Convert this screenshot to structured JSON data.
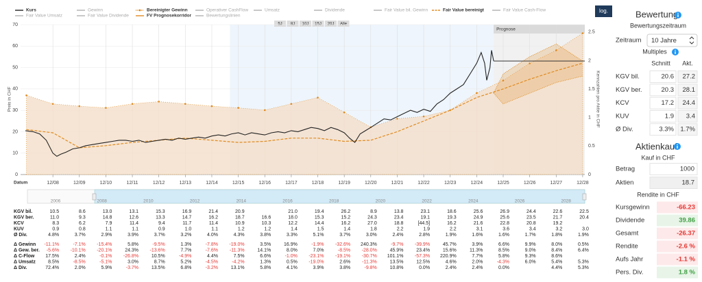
{
  "chart_data": {
    "type": "line",
    "x_label": "Datum",
    "y_label": "Preis in CHF",
    "y2_label": "Kennzahlen pro Aktie in CHF",
    "forecast_label": "Prognose",
    "forecast_start": 2024.64,
    "selected_range": [
      2014.68,
      2024.64
    ],
    "xlim": [
      2006.78,
      2028.08
    ],
    "xticks": [
      {
        "value": 2008,
        "label": "12/08"
      },
      {
        "value": 2009,
        "label": "12/09"
      },
      {
        "value": 2010,
        "label": "12/10"
      },
      {
        "value": 2011,
        "label": "12/11"
      },
      {
        "value": 2012,
        "label": "12/12"
      },
      {
        "value": 2013,
        "label": "12/13"
      },
      {
        "value": 2014,
        "label": "12/14"
      },
      {
        "value": 2015,
        "label": "12/15"
      },
      {
        "value": 2016,
        "label": "12/16"
      },
      {
        "value": 2017,
        "label": "12/17"
      },
      {
        "value": 2018,
        "label": "12/18"
      },
      {
        "value": 2019,
        "label": "12/19"
      },
      {
        "value": 2020,
        "label": "12/20"
      },
      {
        "value": 2021,
        "label": "12/21"
      },
      {
        "value": 2022,
        "label": "12/22"
      },
      {
        "value": 2023,
        "label": "12/23"
      },
      {
        "value": 2024,
        "label": "12/24"
      },
      {
        "value": 2025,
        "label": "12/25"
      },
      {
        "value": 2026,
        "label": "12/26"
      },
      {
        "value": 2027,
        "label": "12/27"
      },
      {
        "value": 2028,
        "label": "12/28"
      }
    ],
    "ylim": [
      0,
      70
    ],
    "yticks": [
      0,
      10,
      20,
      30,
      40,
      50,
      60,
      70
    ],
    "y2lim": [
      0,
      2.63
    ],
    "y2ticks": [
      0,
      0.5,
      1,
      1.5,
      2,
      2.5
    ],
    "grid": true,
    "series": [
      {
        "name": "Kurs",
        "color": "#222222",
        "active": true,
        "style": "line",
        "x": [
          2006.96,
          2007.25,
          2007.5,
          2007.75,
          2008.0,
          2008.15,
          2008.3,
          2008.5,
          2008.75,
          2009.0,
          2009.25,
          2009.5,
          2009.75,
          2010.0,
          2010.25,
          2010.5,
          2010.75,
          2011.0,
          2011.25,
          2011.5,
          2011.75,
          2012.0,
          2012.25,
          2012.5,
          2012.75,
          2013.0,
          2013.25,
          2013.5,
          2013.75,
          2014.0,
          2014.25,
          2014.5,
          2014.75,
          2015.0,
          2015.25,
          2015.5,
          2015.75,
          2016.0,
          2016.25,
          2016.5,
          2016.75,
          2017.0,
          2017.25,
          2017.5,
          2017.75,
          2018.0,
          2018.25,
          2018.5,
          2018.75,
          2019.0,
          2019.2,
          2019.4,
          2019.6,
          2019.8,
          2020.0,
          2020.25,
          2020.5,
          2020.75,
          2021.0,
          2021.25,
          2021.5,
          2021.75,
          2022.0,
          2022.25,
          2022.5,
          2022.75,
          2023.0,
          2023.25,
          2023.5,
          2023.75,
          2024.0,
          2024.17,
          2024.3,
          2024.38,
          2024.5,
          2024.56,
          2024.64
        ],
        "values": [
          20.5,
          20,
          19,
          16,
          10,
          8.5,
          9.5,
          10.5,
          12,
          12.5,
          13.5,
          14,
          14.5,
          15,
          15.5,
          16,
          16,
          15.5,
          16,
          15,
          15.5,
          16,
          16.5,
          16,
          17,
          16.5,
          17,
          17.5,
          17,
          18,
          18.5,
          18,
          19,
          19.5,
          18.5,
          19.5,
          19,
          18.5,
          19.5,
          20,
          19.5,
          20.5,
          20,
          21,
          22,
          21.5,
          20.5,
          22,
          21,
          19.5,
          17,
          15,
          19,
          20.5,
          22,
          24,
          26,
          25.5,
          27,
          28.5,
          30,
          29,
          30.5,
          29.5,
          33,
          35,
          38,
          40,
          42,
          47,
          52,
          57,
          52,
          44,
          50,
          58,
          53
        ]
      },
      {
        "name": "Gewinn",
        "color": "#c8c8c8",
        "active": false
      },
      {
        "name": "Fair Value Umsatz",
        "color": "#c8c8c8",
        "active": false
      },
      {
        "name": "Fair Value Dividende",
        "color": "#c8c8c8",
        "active": false
      },
      {
        "name": "Bereinigter Gewinn",
        "color": "#e08a1e",
        "fill": "#f4dfc9",
        "active": true,
        "style": "area",
        "axis": "y2",
        "x": [
          2007,
          2008,
          2009,
          2010,
          2011,
          2012,
          2013,
          2014,
          2015,
          2016,
          2017,
          2018,
          2019,
          2020,
          2021,
          2022,
          2023,
          2024,
          2025,
          2026,
          2027,
          2028
        ],
        "values": [
          1.39,
          1.24,
          1.2,
          1.17,
          1.24,
          1.28,
          1.24,
          1.2,
          1.17,
          1.13,
          1.24,
          1.35,
          1.09,
          0.83,
          0.98,
          1.02,
          1.13,
          1.43,
          1.65,
          1.95,
          2.18,
          2.48
        ]
      },
      {
        "name": "FV Prognosekorridor",
        "color": "#e08a1e",
        "active": true,
        "style": "corridor",
        "x": [
          2024.64,
          2025,
          2026,
          2027,
          2028
        ],
        "upper": [
          38,
          47,
          55,
          61,
          53
        ],
        "lower": [
          38,
          33,
          38,
          43,
          46
        ]
      },
      {
        "name": "Operativer CashFlow",
        "color": "#c8c8c8",
        "active": false
      },
      {
        "name": "Bewertungslinien",
        "color": "#c8c8c8",
        "active": false
      },
      {
        "name": "Umsatz",
        "color": "#c8c8c8",
        "active": false
      },
      {
        "name": "Dividende",
        "color": "#c8c8c8",
        "active": false
      },
      {
        "name": "Fair Value bil. Gewinn",
        "color": "#c8c8c8",
        "active": false
      },
      {
        "name": "Fair Value bereinigt",
        "color": "#e08a1e",
        "active": true,
        "style": "dashed",
        "x": [
          2007,
          2008,
          2009,
          2010,
          2011,
          2012,
          2013,
          2014,
          2015,
          2016,
          2017,
          2018,
          2019,
          2020,
          2021,
          2022,
          2023,
          2024,
          2025,
          2026,
          2027,
          2028
        ],
        "values": [
          21,
          19.5,
          12.5,
          13.5,
          15,
          16,
          17,
          16,
          15,
          15.5,
          17,
          17,
          15.5,
          16,
          20,
          25,
          30,
          36,
          40,
          44.5,
          48.5,
          52
        ]
      },
      {
        "name": "Fair Value Cash-Flow",
        "color": "#c8c8c8",
        "active": false
      }
    ]
  },
  "controls": {
    "log_button": "log.",
    "range_buttons": [
      "5J",
      "8J",
      "10J",
      "15J",
      "20J",
      "Alle"
    ]
  },
  "navigator_labels": [
    2006,
    2008,
    2010,
    2012,
    2014,
    2016,
    2018,
    2020,
    2022,
    2024,
    2026,
    2028
  ],
  "table": {
    "multiples": {
      "row_labels": [
        "KGV bil.",
        "KGV ber.",
        "KCV",
        "KUV",
        "Ø Div."
      ],
      "rows": [
        [
          "10.5",
          "8.6",
          "13.0",
          "13.1",
          "15.3",
          "16.9",
          "21.4",
          "20.9",
          null,
          "21.0",
          "19.4",
          "26.2",
          "8.9",
          "13.8",
          "23.1",
          "18.6",
          "25.6",
          "26.9",
          "24.4",
          "22.6",
          "22.5"
        ],
        [
          "11.0",
          "9.3",
          "14.8",
          "12.6",
          "13.3",
          "14.7",
          "16.2",
          "18.7",
          "16.6",
          "18.0",
          "15.3",
          "15.2",
          "24.3",
          "23.4",
          "19.1",
          "19.3",
          "24.9",
          "25.6",
          "23.5",
          "21.7",
          "20.4"
        ],
        [
          "8.3",
          "6.2",
          "7.9",
          "11.4",
          "9.4",
          "11.7",
          "11.4",
          "10.9",
          "10.3",
          "12.2",
          "14.4",
          "16.2",
          "27.0",
          "18.8",
          "[44.5]",
          "16.2",
          "21.6",
          "22.8",
          "20.8",
          "19.2",
          null
        ],
        [
          "0.9",
          "0.8",
          "1.1",
          "1.1",
          "0.9",
          "1.0",
          "1.1",
          "1.2",
          "1.2",
          "1.4",
          "1.5",
          "1.4",
          "1.8",
          "2.2",
          "1.9",
          "2.2",
          "3.1",
          "3.6",
          "3.4",
          "3.2",
          "3.0"
        ],
        [
          "4.8%",
          "3.7%",
          "2.9%",
          "3.9%",
          "3.7%",
          "3.2%",
          "4.0%",
          "4.3%",
          "3.8%",
          "3.3%",
          "5.1%",
          "3.7%",
          "3.0%",
          "2.4%",
          "2.8%",
          "1.9%",
          "1.6%",
          "1.6%",
          "1.7%",
          "1.8%",
          "1.9%"
        ]
      ]
    },
    "changes": {
      "row_labels": [
        "Δ Gewinn",
        "Δ Gew. ber.",
        "Δ C-Flow",
        "Δ Umsatz",
        "Δ Div."
      ],
      "rows": [
        [
          "-11.1%",
          "-7.1%",
          "-15.4%",
          "5.8%",
          "-9.5%",
          "1.3%",
          "-7.8%",
          "-19.0%",
          "3.5%",
          "16.9%",
          "-1.9%",
          "-32.6%",
          "240.3%",
          "-9.7%",
          "-39.9%",
          "45.7%",
          "3.9%",
          "6.6%",
          "9.9%",
          "8.0%",
          "0.5%"
        ],
        [
          "-5.6%",
          "-10.1%",
          "-20.1%",
          "24.3%",
          "-13.6%",
          "7.7%",
          "-7.6%",
          "-11.3%",
          "14.1%",
          "8.0%",
          "7.0%",
          "-8.5%",
          "-28.0%",
          "45.9%",
          "23.4%",
          "15.6%",
          "11.3%",
          "8.5%",
          "9.0%",
          "8.4%",
          "6.4%"
        ],
        [
          "17.5%",
          "2.4%",
          "-0.1%",
          "-26.8%",
          "10.5%",
          "-4.9%",
          "4.4%",
          "7.5%",
          "6.6%",
          "-1.0%",
          "-23.1%",
          "-19.1%",
          "-30.7%",
          "101.1%",
          "-57.3%",
          "220.9%",
          "7.7%",
          "5.8%",
          "9.3%",
          "8.6%",
          null
        ],
        [
          "8.5%",
          "-8.5%",
          "-5.1%",
          "3.0%",
          "8.7%",
          "5.2%",
          "-4.5%",
          "-4.2%",
          "1.3%",
          "0.5%",
          "-19.0%",
          "2.6%",
          "-11.3%",
          "13.5%",
          "12.5%",
          "4.6%",
          "2.0%",
          "-4.3%",
          "6.0%",
          "5.4%",
          "5.3%"
        ],
        [
          "72.4%",
          "2.0%",
          "5.9%",
          "-3.7%",
          "13.5%",
          "6.8%",
          "-3.2%",
          "13.1%",
          "5.8%",
          "4.1%",
          "3.9%",
          "3.8%",
          "-9.8%",
          "10.8%",
          "0.0%",
          "2.4%",
          "2.4%",
          "0.0%",
          null,
          "4.4%",
          "5.3%"
        ]
      ]
    }
  },
  "valuation": {
    "title": "Bewertung",
    "period_heading": "Bewertungszeitraum",
    "period_label": "Zeitraum",
    "period_value": "10 Jahre",
    "multiples_heading": "Multiples",
    "columns": [
      "Schnitt",
      "Akt."
    ],
    "rows": [
      {
        "label": "KGV bil.",
        "values": [
          20.6,
          27.2
        ]
      },
      {
        "label": "KGV ber.",
        "values": [
          20.3,
          28.1
        ]
      },
      {
        "label": "KCV",
        "values": [
          17.2,
          24.4
        ]
      },
      {
        "label": "KUV",
        "values": [
          1.9,
          3.4
        ]
      },
      {
        "label": "Ø Div.",
        "values": [
          "3.3%",
          "1.7%"
        ]
      }
    ]
  },
  "purchase": {
    "title": "Aktienkauf",
    "subtitle": "Kauf in CHF",
    "inputs": [
      {
        "label": "Betrag",
        "value": 1000
      },
      {
        "label": "Aktien",
        "value": 18.7
      }
    ],
    "returns_heading": "Rendite in CHF",
    "returns": [
      {
        "label": "Kursgewinn",
        "value": -66.23
      },
      {
        "label": "Dividende",
        "value": 39.86
      },
      {
        "label": "Gesamt",
        "value": -26.37
      },
      {
        "label": "Rendite",
        "value": "-2.6 %"
      },
      {
        "label": "Aufs Jahr",
        "value": "-1.1 %"
      },
      {
        "label": "Pers. Div.",
        "value": "1.8 %"
      }
    ]
  }
}
